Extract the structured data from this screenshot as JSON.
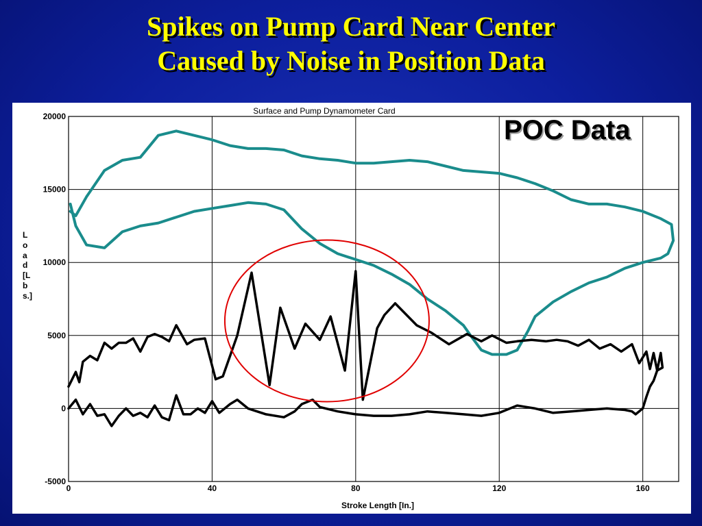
{
  "slide": {
    "title_line1": "Spikes on Pump Card Near Center",
    "title_line2": "Caused by Noise in Position Data"
  },
  "annotation": {
    "label": "POC Data"
  },
  "colors": {
    "background": "#0d1f9e",
    "title": "#ffff00",
    "surface_card": "#1a8c8c",
    "pump_card": "#000000",
    "highlight_circle": "#e00000"
  },
  "chart_data": {
    "type": "line",
    "title": "Surface and Pump Dynamometer Card",
    "xlabel": "Stroke Length [In.]",
    "ylabel": "Load [Lbs.]",
    "xlim": [
      0,
      170
    ],
    "ylim": [
      -5000,
      20000
    ],
    "xticks": [
      "0",
      "40",
      "80",
      "120",
      "160"
    ],
    "yticks": [
      "20000",
      "15000",
      "10000",
      "5000",
      "0",
      "-5000"
    ],
    "grid": true,
    "series": [
      {
        "color": "#1a8c8c",
        "x": [
          0.5,
          2,
          5,
          10,
          15,
          20,
          25,
          30,
          35,
          40,
          45,
          50,
          55,
          60,
          65,
          70,
          75,
          80,
          85,
          90,
          95,
          100,
          105,
          110,
          115,
          120,
          125,
          130,
          135,
          140,
          145,
          150,
          155,
          160,
          165,
          168,
          168.5,
          167,
          165,
          160,
          155,
          150,
          145,
          140,
          135,
          130,
          128,
          125,
          122,
          118,
          115,
          112,
          110,
          105,
          100,
          95,
          90,
          85,
          80,
          75,
          70,
          65,
          60,
          55,
          50,
          45,
          40,
          35,
          30,
          25,
          20,
          15,
          10,
          5,
          2,
          0.5
        ],
        "y": [
          13500,
          13200,
          14500,
          16300,
          17000,
          17200,
          18700,
          19000,
          18700,
          18400,
          18000,
          17800,
          17800,
          17700,
          17300,
          17100,
          17000,
          16800,
          16800,
          16900,
          17000,
          16900,
          16600,
          16300,
          16200,
          16100,
          15800,
          15400,
          14900,
          14300,
          14000,
          14000,
          13800,
          13500,
          13000,
          12600,
          11500,
          10600,
          10300,
          10000,
          9600,
          9000,
          8600,
          8000,
          7300,
          6300,
          5300,
          4000,
          3700,
          3700,
          4000,
          5000,
          5700,
          6700,
          7500,
          8500,
          9200,
          9800,
          10200,
          10600,
          11300,
          12300,
          13600,
          14000,
          14100,
          13900,
          13700,
          13500,
          13100,
          12700,
          12500,
          12100,
          11000,
          11200,
          12500,
          14000
        ]
      },
      {
        "color": "#000000",
        "x": [
          0,
          1,
          2,
          3,
          4,
          6,
          8,
          10,
          12,
          14,
          16,
          18,
          20,
          22,
          24,
          26,
          28,
          30,
          33,
          35,
          38,
          41,
          43,
          47,
          51,
          56,
          59,
          63,
          66,
          70,
          73,
          77,
          80,
          82,
          86,
          88,
          91,
          97,
          101,
          106,
          111,
          115,
          118,
          122,
          125,
          129,
          133,
          136,
          139,
          142,
          145,
          148,
          151,
          154,
          157,
          159,
          161,
          162,
          163,
          164,
          165,
          165.5,
          164,
          163,
          162,
          161,
          160,
          158,
          157,
          155,
          150,
          145,
          140,
          135,
          130,
          125,
          120,
          115,
          110,
          105,
          100,
          95,
          90,
          85,
          80,
          75,
          70,
          68,
          65,
          63,
          60,
          55,
          50,
          47,
          45,
          42,
          40,
          38,
          36,
          34,
          32,
          30,
          28,
          26,
          24,
          22,
          20,
          18,
          16,
          14,
          12,
          10,
          8,
          6,
          4,
          2,
          0
        ],
        "y": [
          1500,
          2000,
          2500,
          1800,
          3200,
          3600,
          3300,
          4500,
          4100,
          4500,
          4500,
          4800,
          3900,
          4900,
          5100,
          4900,
          4600,
          5700,
          4400,
          4700,
          4800,
          2000,
          2200,
          5000,
          9300,
          1600,
          6900,
          4100,
          5800,
          4700,
          6300,
          2600,
          9400,
          600,
          5500,
          6400,
          7200,
          5700,
          5200,
          4400,
          5100,
          4600,
          5000,
          4500,
          4600,
          4700,
          4600,
          4700,
          4600,
          4300,
          4700,
          4100,
          4400,
          3900,
          4400,
          3100,
          3900,
          2700,
          3800,
          2600,
          3800,
          2800,
          2600,
          1900,
          1500,
          800,
          0,
          -400,
          -200,
          -100,
          0,
          -100,
          -200,
          -300,
          0,
          200,
          -300,
          -500,
          -400,
          -300,
          -200,
          -400,
          -500,
          -500,
          -400,
          -200,
          100,
          600,
          300,
          -200,
          -600,
          -400,
          0,
          600,
          300,
          -300,
          500,
          -300,
          0,
          -400,
          -400,
          900,
          -800,
          -600,
          200,
          -600,
          -300,
          -500,
          0,
          -500,
          -1200,
          -400,
          -500,
          300,
          -400,
          600,
          0
        ]
      }
    ],
    "annotation": {
      "type": "ellipse",
      "color": "#e00000",
      "cx": 72,
      "cy": 6000
    }
  }
}
